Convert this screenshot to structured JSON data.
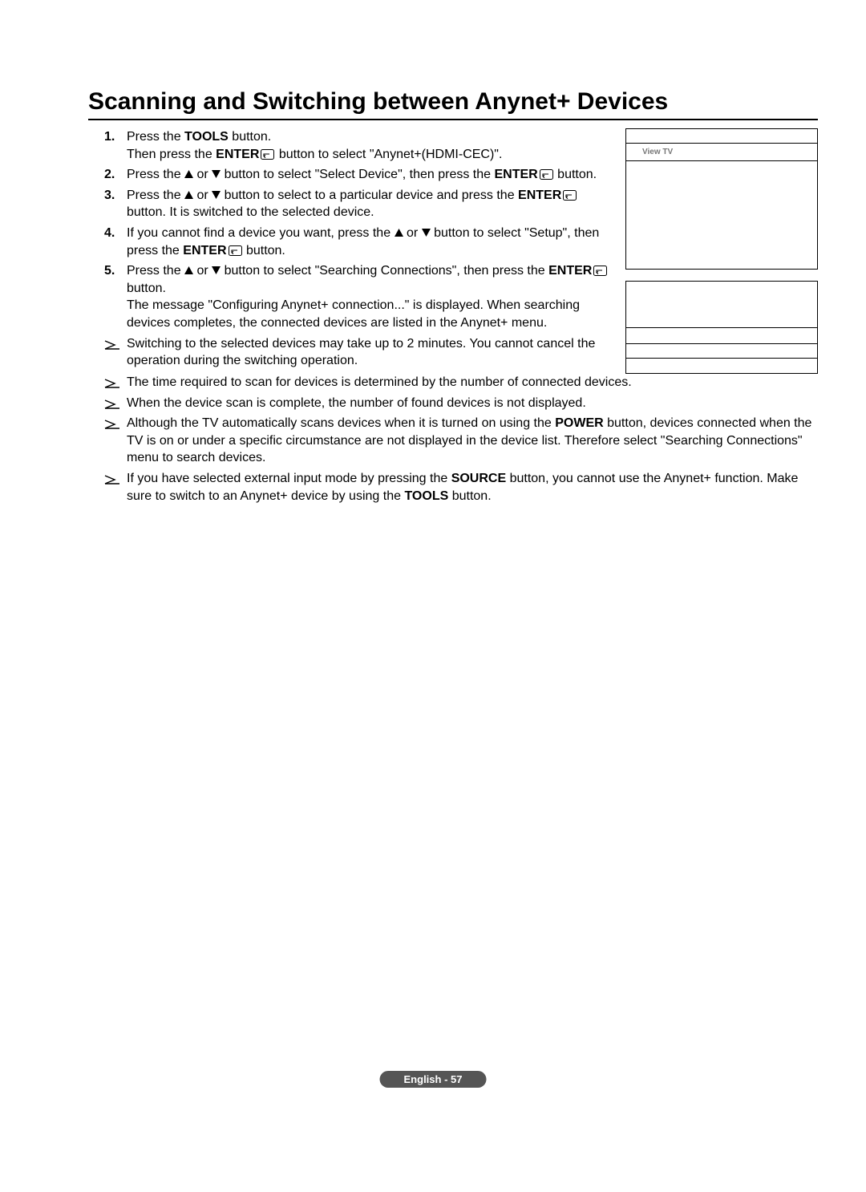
{
  "title": "Scanning and Switching between Anynet+ Devices",
  "enterLabel": "ENTER",
  "toolsLabel": "TOOLS",
  "powerLabel": "POWER",
  "sourceLabel": "SOURCE",
  "steps": [
    {
      "num": "1.",
      "parts": [
        {
          "pre": "Press the ",
          "bold": "TOOLS",
          "post": " button."
        },
        {
          "pre": "Then press the ",
          "enter": true,
          "post": " button to select \"Anynet+(HDMI-CEC)\"."
        }
      ]
    },
    {
      "num": "2.",
      "parts": [
        {
          "pre": "Press the ",
          "updown": true,
          "mid": " button to select \"Select Device\", then press the ",
          "enter": true,
          "post": " button."
        }
      ]
    },
    {
      "num": "3.",
      "parts": [
        {
          "pre": "Press the ",
          "updown": true,
          "mid": " button to select to a particular device and press the ",
          "enter": true,
          "post": " button. It is switched to the selected device."
        }
      ]
    },
    {
      "num": "4.",
      "parts": [
        {
          "pre": "If you cannot find a device you want, press the ",
          "updown": true,
          "mid": " button to select \"Setup\", then press the ",
          "enter": true,
          "post": " button."
        }
      ]
    },
    {
      "num": "5.",
      "parts": [
        {
          "pre": "Press the ",
          "updown": true,
          "mid": " button to select \"Searching Connections\", then press the ",
          "enter": true,
          "post": " button."
        },
        {
          "plain": "The message \"Configuring Anynet+ connection...\" is displayed. When searching devices completes, the connected devices are listed in the Anynet+ menu."
        }
      ]
    }
  ],
  "narrowNotes": [
    "Switching to the selected devices may take up to 2 minutes. You cannot cancel the operation during the switching operation."
  ],
  "wideNotes": [
    {
      "plain": "The time required to scan for devices is determined by the number of connected devices."
    },
    {
      "plain": "When the device scan is complete, the number of found devices is not displayed."
    },
    {
      "pre": "Although the TV automatically scans devices when it is turned on using the ",
      "bold": "POWER",
      "post": " button, devices connected when the TV is on or under a specific circumstance are not displayed in the device list. Therefore select \"Searching Connections\" menu to search devices."
    },
    {
      "pre": "If you have selected external input mode by pressing the ",
      "bold": "SOURCE",
      "post": " button, you cannot use the Anynet+ function. Make sure to switch to an Anynet+ device by using the ",
      "bold2": "TOOLS",
      "post2": " button."
    }
  ],
  "viewTV": "View TV",
  "footer": "English - 57"
}
